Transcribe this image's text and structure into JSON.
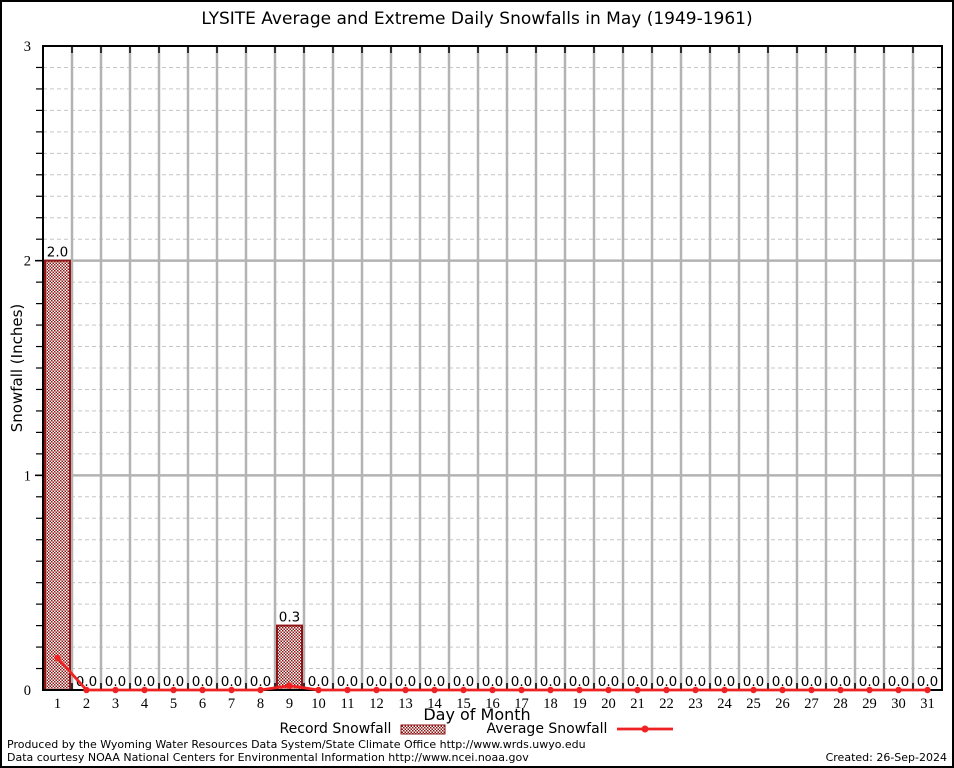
{
  "title": "LYSITE Average and Extreme Daily Snowfalls in May (1949-1961)",
  "chart_data": {
    "type": "bar",
    "title": "LYSITE Average and Extreme Daily Snowfalls in May (1949-1961)",
    "xlabel": "Day of Month",
    "ylabel": "Snowfall (Inches)",
    "x": [
      1,
      2,
      3,
      4,
      5,
      6,
      7,
      8,
      9,
      10,
      11,
      12,
      13,
      14,
      15,
      16,
      17,
      18,
      19,
      20,
      21,
      22,
      23,
      24,
      25,
      26,
      27,
      28,
      29,
      30,
      31
    ],
    "series": [
      {
        "name": "Record Snowfall",
        "type": "bar",
        "values": [
          2.0,
          0.0,
          0.0,
          0.0,
          0.0,
          0.0,
          0.0,
          0.0,
          0.3,
          0.0,
          0.0,
          0.0,
          0.0,
          0.0,
          0.0,
          0.0,
          0.0,
          0.0,
          0.0,
          0.0,
          0.0,
          0.0,
          0.0,
          0.0,
          0.0,
          0.0,
          0.0,
          0.0,
          0.0,
          0.0,
          0.0
        ]
      },
      {
        "name": "Average Snowfall",
        "type": "line",
        "values": [
          0.15,
          0,
          0,
          0,
          0,
          0,
          0,
          0,
          0.02,
          0,
          0,
          0,
          0,
          0,
          0,
          0,
          0,
          0,
          0,
          0,
          0,
          0,
          0,
          0,
          0,
          0,
          0,
          0,
          0,
          0,
          0
        ]
      }
    ],
    "value_labels": [
      "2.0",
      "0.0",
      "0.0",
      "0.0",
      "0.0",
      "0.0",
      "0.0",
      "0.0",
      "0.3",
      "0.0",
      "0.0",
      "0.0",
      "0.0",
      "0.0",
      "0.0",
      "0.0",
      "0.0",
      "0.0",
      "0.0",
      "0.0",
      "0.0",
      "0.0",
      "0.0",
      "0.0",
      "0.0",
      "0.0",
      "0.0",
      "0.0",
      "0.0",
      "0.0",
      "0.0"
    ],
    "ylim": [
      0,
      3
    ],
    "yticks": [
      0,
      1,
      2,
      3
    ],
    "y_minor_step": 0.1,
    "grid": "major solid gray, minor dashed horizontal; vertical gray line at each day boundary",
    "legend_position": "bottom center",
    "colors": {
      "bar": "#8e1513",
      "line": "#ee2222",
      "grid_major": "#b3b3b3",
      "grid_minor": "#c6c6c6",
      "axis": "#000000"
    }
  },
  "footer": {
    "line1": "Produced by the Wyoming Water Resources Data System/State Climate Office http://www.wrds.uwyo.edu",
    "line2": "Data courtesy NOAA National Centers for Environmental Information http://www.ncei.noaa.gov",
    "created": "Created: 26-Sep-2024"
  }
}
